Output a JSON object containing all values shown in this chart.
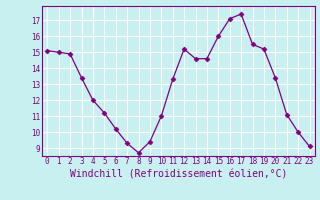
{
  "x": [
    0,
    1,
    2,
    3,
    4,
    5,
    6,
    7,
    8,
    9,
    10,
    11,
    12,
    13,
    14,
    15,
    16,
    17,
    18,
    19,
    20,
    21,
    22,
    23
  ],
  "y": [
    15.1,
    15.0,
    14.9,
    13.4,
    12.0,
    11.2,
    10.2,
    9.3,
    8.7,
    9.4,
    11.0,
    13.3,
    15.2,
    14.6,
    14.6,
    16.0,
    17.1,
    17.4,
    15.5,
    15.2,
    13.4,
    11.1,
    10.0,
    9.1
  ],
  "line_color": "#800080",
  "marker": "D",
  "marker_size": 2.5,
  "marker_color": "#800080",
  "bg_color": "#c8f0f0",
  "grid_color": "#b0d8d8",
  "xlabel": "Windchill (Refroidissement éolien,°C)",
  "xlabel_color": "#800080",
  "tick_color": "#800080",
  "ylim": [
    8.5,
    17.9
  ],
  "xlim": [
    -0.5,
    23.5
  ],
  "yticks": [
    9,
    10,
    11,
    12,
    13,
    14,
    15,
    16,
    17
  ],
  "xticks": [
    0,
    1,
    2,
    3,
    4,
    5,
    6,
    7,
    8,
    9,
    10,
    11,
    12,
    13,
    14,
    15,
    16,
    17,
    18,
    19,
    20,
    21,
    22,
    23
  ],
  "tick_fontsize": 5.5,
  "xlabel_fontsize": 7.0
}
